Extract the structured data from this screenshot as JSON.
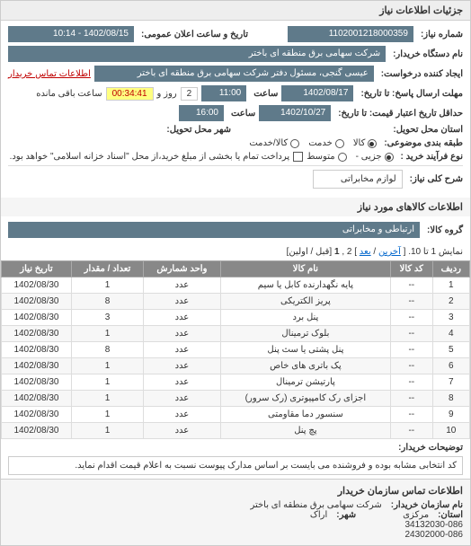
{
  "panel_title": "جزئیات اطلاعات نیاز",
  "form": {
    "req_number_label": "شماره نیاز:",
    "req_number": "1102001218000359",
    "public_date_label": "تاریخ و ساعت اعلان عمومی:",
    "public_date": "1402/08/15 - 10:14",
    "buyer_org_label": "نام دستگاه خریدار:",
    "buyer_org": "شرکت سهامی برق منطقه ای باختر",
    "requester_label": "ایجاد کننده درخواست:",
    "requester": "عیسی گنجی، مسئول دفتر شرکت سهامی برق منطقه ای باختر",
    "buyer_contact_link": "اطلاعات تماس خریدار",
    "deadline_label": "مهلت ارسال پاسخ: تا تاریخ:",
    "deadline_date": "1402/08/17",
    "time_label": "ساعت",
    "deadline_time": "11:00",
    "remain_label": "روز و",
    "remain_days": "2",
    "remain_time": "00:34:41",
    "remain_suffix": "ساعت باقی مانده",
    "validity_label": "حداقل تاریخ اعتبار قیمت: تا تاریخ:",
    "validity_date": "1402/10/27",
    "validity_time": "16:00",
    "delivery_state_label": "استان محل تحویل:",
    "delivery_city_label": "شهر محل تحویل:",
    "category_label": "طبقه بندی موضوعی:",
    "cat_options": {
      "a": "کالا",
      "b": "خدمت",
      "c": "کالا/خدمت"
    },
    "cat_selected": "a",
    "buy_type_label": "نوع فرآیند خرید :",
    "buy_options": {
      "a": "جزیی -",
      "b": "متوسط"
    },
    "buy_selected": "a",
    "buy_note_chk_label": "پرداخت تمام یا بخشی از مبلغ خرید،از محل \"اسناد خزانه اسلامی\" خواهد بود.",
    "need_title_label": "شرح کلی نیاز:",
    "need_title": "لوازم مخابراتی"
  },
  "goods_section_title": "اطلاعات کالاهای مورد نیاز",
  "goods_group_label": "گروه کالا:",
  "goods_group": "ارتباطی و مخابراتی",
  "pager": {
    "prefix": "نمایش 1 تا 10. [",
    "last": "آخرین",
    "sep1": " / ",
    "next": "بعد",
    "suffix": "] 2 ,",
    "current": "1",
    "tail": "[قبل / اولین]"
  },
  "table": {
    "headers": [
      "ردیف",
      "کد کالا",
      "نام کالا",
      "واحد شمارش",
      "تعداد / مقدار",
      "تاریخ نیاز"
    ],
    "rows": [
      [
        "1",
        "--",
        "پایه نگهدارنده کابل یا سیم",
        "عدد",
        "1",
        "1402/08/30"
      ],
      [
        "2",
        "--",
        "پریز الکتریکی",
        "عدد",
        "8",
        "1402/08/30"
      ],
      [
        "3",
        "--",
        "پنل برد",
        "عدد",
        "3",
        "1402/08/30"
      ],
      [
        "4",
        "--",
        "بلوک ترمینال",
        "عدد",
        "1",
        "1402/08/30"
      ],
      [
        "5",
        "--",
        "پنل پشتی یا سث پنل",
        "عدد",
        "8",
        "1402/08/30"
      ],
      [
        "6",
        "--",
        "پک باتری های خاص",
        "عدد",
        "1",
        "1402/08/30"
      ],
      [
        "7",
        "--",
        "پارتیشن ترمینال",
        "عدد",
        "1",
        "1402/08/30"
      ],
      [
        "8",
        "--",
        "اجزای رک کامپیوتری (رک سرور)",
        "عدد",
        "1",
        "1402/08/30"
      ],
      [
        "9",
        "--",
        "سنسور دما مقاومتی",
        "عدد",
        "1",
        "1402/08/30"
      ],
      [
        "10",
        "--",
        "پچ پنل",
        "عدد",
        "1",
        "1402/08/30"
      ]
    ]
  },
  "buyer_note_label": "توضیحات خریدار:",
  "buyer_note": "کد انتخابی مشابه بوده و فروشنده می بایست بر اساس مدارک پیوست نسبت به اعلام قیمت اقدام نماید.",
  "footer": {
    "title": "اطلاعات تماس سازمان خریدار",
    "org_label": "نام سازمان خریدار:",
    "org": "شرکت سهامی برق منطقه ای باختر",
    "state_label": "استان:",
    "state": "مرکزی",
    "city_label": "شهر:",
    "city": "اراک",
    "phone1": "34132030-086",
    "phone2": "24302000-086"
  }
}
